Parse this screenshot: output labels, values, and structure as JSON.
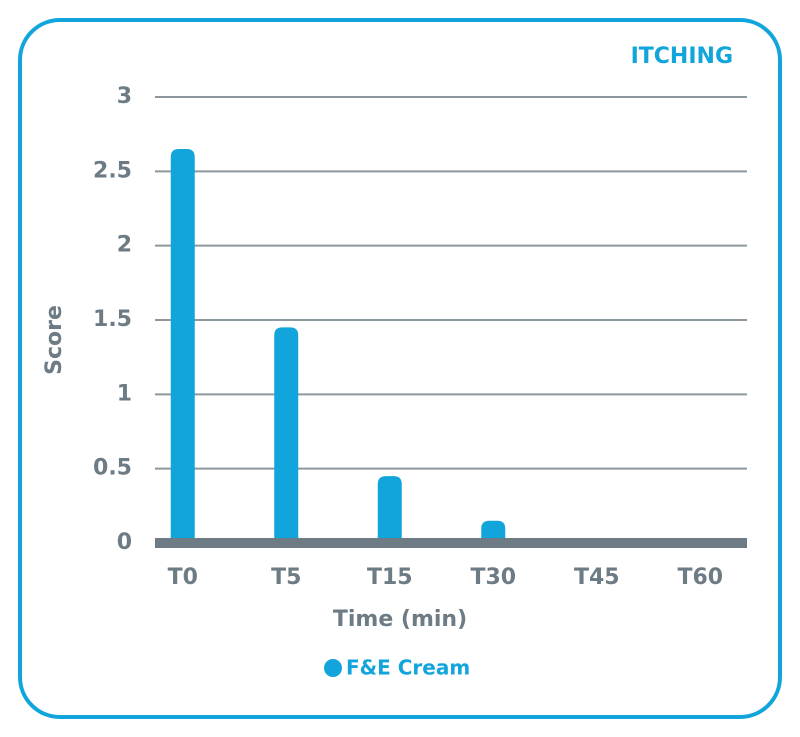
{
  "chart_data": {
    "type": "bar",
    "title": "ITCHING",
    "categories": [
      "T0",
      "T5",
      "T15",
      "T30",
      "T45",
      "T60"
    ],
    "series": [
      {
        "name": "F&E Cream",
        "color": "#12a5dc",
        "values": [
          2.65,
          1.45,
          0.45,
          0.15,
          0,
          0
        ]
      }
    ],
    "x_label": "Time (min)",
    "y_label": "Score",
    "ylim": [
      0,
      3
    ],
    "yticks": [
      0,
      0.5,
      1,
      1.5,
      2,
      2.5,
      3
    ],
    "grid": true
  }
}
